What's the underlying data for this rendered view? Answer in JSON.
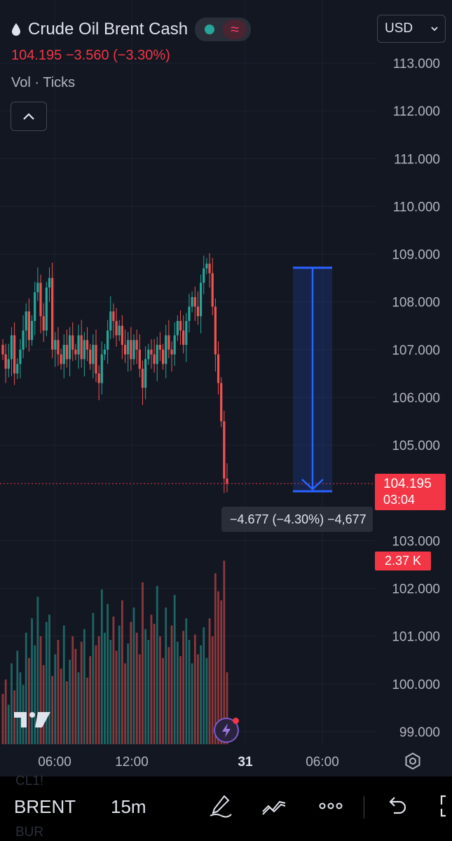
{
  "header": {
    "title": "Crude Oil Brent Cash",
    "quote": "104.195  −3.560 (−3.30%)",
    "volume_label": "Vol · Ticks",
    "market_status_color": "#26a69a",
    "delayed_symbol": "≈",
    "currency": "USD"
  },
  "price_axis": {
    "ticks": [
      "113.000",
      "112.000",
      "111.000",
      "110.000",
      "109.000",
      "108.000",
      "107.000",
      "106.000",
      "105.000",
      "103.000",
      "102.000",
      "101.000",
      "100.000",
      "99.000"
    ]
  },
  "time_axis": {
    "ticks": [
      "06:00",
      "12:00",
      "31",
      "06:00"
    ]
  },
  "last_price": {
    "price": "104.195",
    "countdown": "03:04"
  },
  "volume_badge": "2.37 K",
  "measure_tool": {
    "text": "−4.677 (−4.30%) −4,677"
  },
  "toolbar": {
    "ghost_prev": "CL1!",
    "symbol": "BRENT",
    "ghost_next": "BUR",
    "interval": "15m"
  },
  "colors": {
    "up": "#26a69a",
    "down": "#ef5350",
    "measure": "#2962ff",
    "background": "#131722"
  },
  "chart_data": {
    "type": "candlestick",
    "ylim": [
      98.6,
      113.4
    ],
    "start_price": 107.1,
    "closes": [
      106.9,
      106.6,
      106.8,
      107.3,
      106.5,
      106.7,
      107.0,
      107.4,
      107.8,
      107.2,
      107.6,
      108.2,
      108.4,
      107.7,
      107.4,
      108.3,
      108.5,
      107.0,
      107.2,
      106.9,
      106.7,
      107.1,
      106.8,
      107.3,
      107.0,
      106.9,
      107.3,
      106.8,
      107.2,
      107.0,
      106.7,
      107.1,
      106.5,
      106.3,
      106.9,
      107.0,
      107.4,
      107.8,
      107.6,
      107.3,
      107.5,
      107.1,
      106.9,
      107.2,
      106.8,
      107.2,
      107.0,
      106.6,
      106.2,
      106.8,
      107.0,
      106.9,
      106.7,
      107.1,
      107.0,
      106.7,
      107.3,
      107.0,
      106.9,
      107.3,
      107.6,
      107.4,
      107.1,
      107.6,
      107.9,
      108.1,
      107.9,
      107.7,
      108.4,
      108.7,
      108.8,
      108.6,
      107.9,
      106.9,
      106.3,
      105.5,
      104.3,
      104.195
    ],
    "volumes": [
      0.28,
      0.36,
      0.22,
      0.45,
      0.3,
      0.52,
      0.4,
      0.33,
      0.62,
      0.48,
      0.7,
      0.55,
      0.82,
      0.6,
      0.44,
      0.68,
      0.72,
      0.38,
      0.5,
      0.58,
      0.42,
      0.66,
      0.35,
      0.47,
      0.6,
      0.53,
      0.4,
      0.57,
      0.64,
      0.37,
      0.49,
      0.73,
      0.55,
      0.6,
      0.86,
      0.62,
      0.78,
      0.58,
      0.71,
      0.52,
      0.66,
      0.8,
      0.45,
      0.56,
      0.68,
      0.76,
      0.62,
      0.5,
      0.9,
      0.64,
      0.58,
      0.72,
      0.67,
      0.88,
      0.6,
      0.48,
      0.76,
      0.54,
      0.66,
      0.83,
      0.57,
      0.49,
      0.63,
      0.7,
      0.58,
      0.45,
      0.61,
      0.5,
      0.55,
      0.65,
      0.48,
      0.7,
      0.6,
      0.95,
      0.85,
      0.8,
      1.0,
      0.4
    ],
    "volume_max": 2.37,
    "measure": {
      "from_price": 108.7,
      "to_price": 104.0
    }
  }
}
